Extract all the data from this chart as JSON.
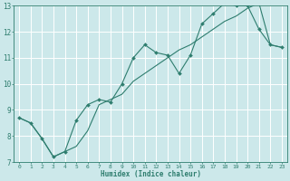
{
  "xlabel": "Humidex (Indice chaleur)",
  "xlim": [
    -0.5,
    23.5
  ],
  "ylim": [
    7,
    13
  ],
  "xticks": [
    0,
    1,
    2,
    3,
    4,
    5,
    6,
    7,
    8,
    9,
    10,
    11,
    12,
    13,
    14,
    15,
    16,
    17,
    18,
    19,
    20,
    21,
    22,
    23
  ],
  "yticks": [
    7,
    8,
    9,
    10,
    11,
    12,
    13
  ],
  "line_color": "#2e7d6e",
  "bg_color": "#cce8ea",
  "grid_color": "#ffffff",
  "line1_x": [
    0,
    1,
    2,
    3,
    4,
    5,
    6,
    7,
    8,
    9,
    10,
    11,
    12,
    13,
    14,
    15,
    16,
    17,
    18,
    19,
    20,
    21,
    22,
    23
  ],
  "line1_y": [
    8.7,
    8.5,
    7.9,
    7.2,
    7.4,
    8.6,
    9.2,
    9.4,
    9.3,
    10.0,
    11.0,
    11.5,
    11.2,
    11.1,
    10.4,
    11.1,
    12.3,
    12.7,
    13.1,
    13.0,
    13.0,
    12.1,
    11.5,
    11.4
  ],
  "line2_x": [
    0,
    1,
    2,
    3,
    4,
    5,
    6,
    7,
    8,
    9,
    10,
    11,
    12,
    13,
    14,
    15,
    16,
    17,
    18,
    19,
    20,
    21,
    22,
    23
  ],
  "line2_y": [
    8.7,
    8.5,
    7.9,
    7.2,
    7.4,
    7.6,
    8.2,
    9.2,
    9.4,
    9.6,
    10.1,
    10.4,
    10.7,
    11.0,
    11.3,
    11.5,
    11.8,
    12.1,
    12.4,
    12.6,
    12.9,
    13.1,
    11.5,
    11.4
  ]
}
